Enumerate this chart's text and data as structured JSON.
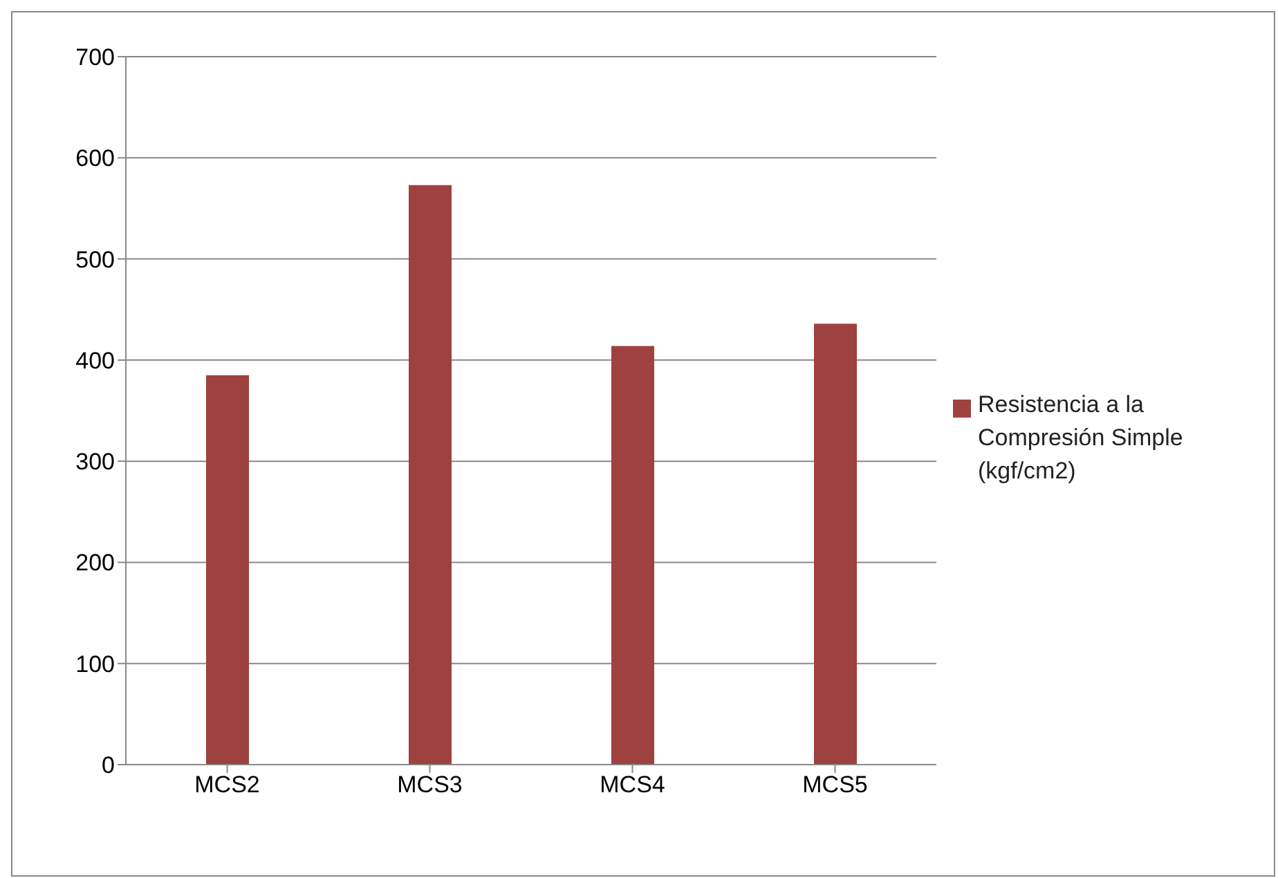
{
  "chart_data": {
    "type": "bar",
    "categories": [
      "MCS2",
      "MCS3",
      "MCS4",
      "MCS5"
    ],
    "series": [
      {
        "name": "Resistencia a la Compresión Simple (kgf/cm2)",
        "color": "#9e413f",
        "values": [
          385,
          573,
          414,
          436
        ]
      }
    ],
    "ylim": [
      0,
      700
    ],
    "yticks": [
      0,
      100,
      200,
      300,
      400,
      500,
      600,
      700
    ],
    "grid": "y",
    "legend": "right"
  }
}
